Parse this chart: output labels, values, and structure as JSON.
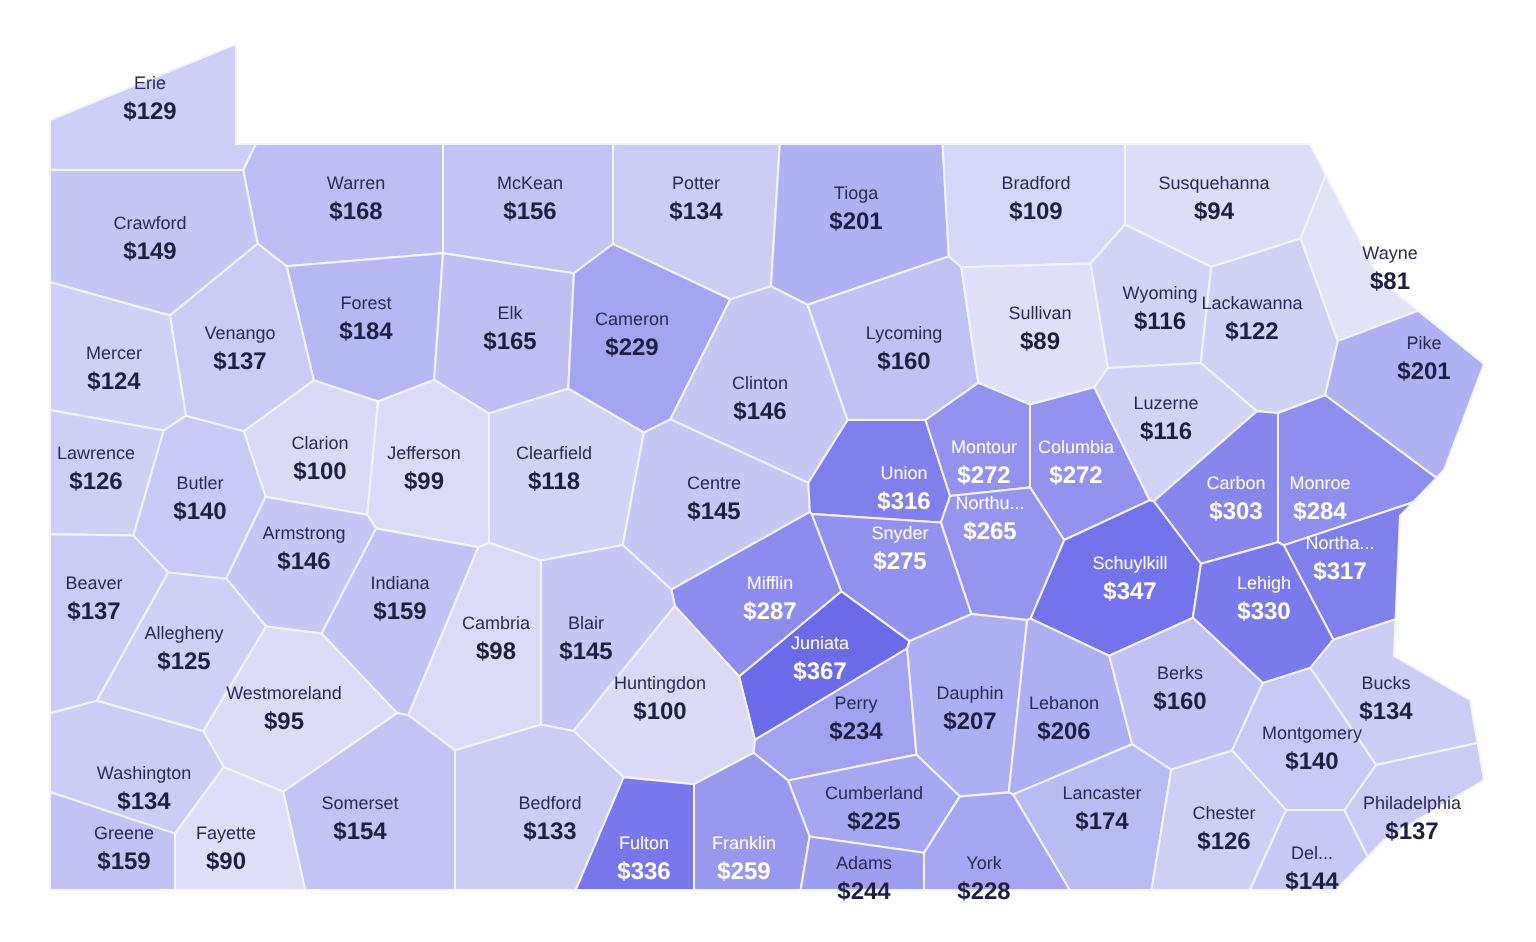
{
  "chart_data": {
    "type": "other",
    "categories": [
      "Erie",
      "Warren",
      "McKean",
      "Potter",
      "Tioga",
      "Bradford",
      "Susquehanna",
      "Wayne",
      "Crawford",
      "Forest",
      "Elk",
      "Cameron",
      "Venango",
      "Mercer",
      "Clarion",
      "Jefferson",
      "Clearfield",
      "Clinton",
      "Lycoming",
      "Sullivan",
      "Wyoming",
      "Lackawanna",
      "Pike",
      "Luzerne",
      "Lawrence",
      "Butler",
      "Armstrong",
      "Indiana",
      "Centre",
      "Union",
      "Montour",
      "Columbia",
      "Northu...",
      "Monroe",
      "Carbon",
      "Beaver",
      "Snyder",
      "Schuylkill",
      "Northa...",
      "Lehigh",
      "Mifflin",
      "Juniata",
      "Cambria",
      "Blair",
      "Huntingdon",
      "Allegheny",
      "Westmoreland",
      "Washington",
      "Perry",
      "Dauphin",
      "Lebanon",
      "Berks",
      "Bucks",
      "Montgomery",
      "Cumberland",
      "Lancaster",
      "Chester",
      "Del...",
      "Philadelphia",
      "Greene",
      "Fayette",
      "Somerset",
      "Bedford",
      "Fulton",
      "Franklin",
      "Adams",
      "York"
    ],
    "values": [
      129,
      168,
      156,
      134,
      201,
      109,
      94,
      81,
      149,
      184,
      165,
      229,
      137,
      124,
      100,
      99,
      118,
      146,
      160,
      89,
      116,
      122,
      201,
      116,
      126,
      140,
      146,
      159,
      145,
      316,
      272,
      272,
      265,
      284,
      303,
      137,
      275,
      347,
      317,
      330,
      287,
      367,
      98,
      145,
      100,
      125,
      95,
      134,
      234,
      207,
      206,
      160,
      134,
      140,
      225,
      174,
      126,
      144,
      137,
      159,
      90,
      154,
      133,
      336,
      259,
      244,
      228
    ],
    "value_labels": [
      "$129",
      "$168",
      "$156",
      "$134",
      "$201",
      "$109",
      "$94",
      "$81",
      "$149",
      "$184",
      "$165",
      "$229",
      "$137",
      "$124",
      "$100",
      "$99",
      "$118",
      "$146",
      "$160",
      "$89",
      "$116",
      "$122",
      "$201",
      "$116",
      "$126",
      "$140",
      "$146",
      "$159",
      "$145",
      "$316",
      "$272",
      "$272",
      "$265",
      "$284",
      "$303",
      "$137",
      "$275",
      "$347",
      "$317",
      "$330",
      "$287",
      "$367",
      "$98",
      "$145",
      "$100",
      "$125",
      "$95",
      "$134",
      "$234",
      "$207",
      "$206",
      "$160",
      "$134",
      "$140",
      "$225",
      "$174",
      "$126",
      "$144",
      "$137",
      "$159",
      "$90",
      "$154",
      "$133",
      "$336",
      "$259",
      "$244",
      "$228"
    ],
    "colors": [
      "#cecef6",
      "#bebef4",
      "#c3c3f4",
      "#ccccf5",
      "#b0b0f2",
      "#d6d6f7",
      "#ddddf7",
      "#e2e2f8",
      "#c6c6f5",
      "#b7b7f3",
      "#bfbff4",
      "#a4a4f1",
      "#cbcbf5",
      "#d0d0f6",
      "#dadaf7",
      "#dbdbf7",
      "#d3d3f6",
      "#c7c7f5",
      "#c1c1f4",
      "#dfdff8",
      "#d3d3f6",
      "#d1d1f6",
      "#b0b0f2",
      "#d3d3f6",
      "#cfcff6",
      "#c9c9f5",
      "#c7c7f5",
      "#c2c2f4",
      "#c7c7f5",
      "#8080ec",
      "#9393ef",
      "#9393ef",
      "#9595ef",
      "#8e8eee",
      "#8686ed",
      "#cbcbf5",
      "#9191ef",
      "#7373eb",
      "#8080ec",
      "#7a7aec",
      "#8c8cee",
      "#6b6bea",
      "#dbdbf7",
      "#c7c7f5",
      "#dadaf7",
      "#d0d0f6",
      "#dcdcf7",
      "#ccccf5",
      "#a2a2f1",
      "#aeaef2",
      "#aeaef2",
      "#c1c1f4",
      "#ccccf5",
      "#c9c9f5",
      "#a6a6f1",
      "#bbbbf3",
      "#cfcff6",
      "#c8c8f5",
      "#cbcbf5",
      "#c2c2f4",
      "#dedef8",
      "#c4c4f4",
      "#ccccf5",
      "#7878ec",
      "#9898ef",
      "#9e9ef0",
      "#a5a5f1"
    ]
  }
}
